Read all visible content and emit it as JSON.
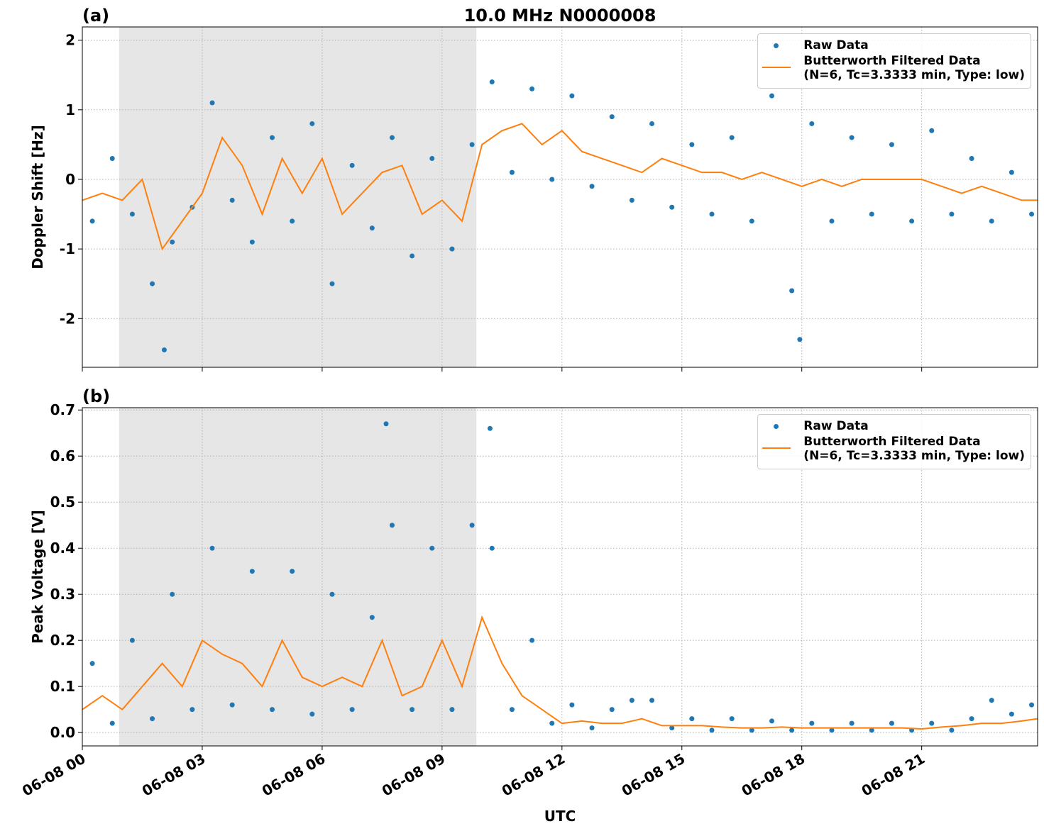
{
  "chart_data": [
    {
      "type": "line",
      "panel_label": "(a)",
      "title": "10.0 MHz N0000008",
      "ylabel": "Doppler Shift [Hz]",
      "xlim": [
        0,
        23.9
      ],
      "ylim": [
        -2.7,
        2.19
      ],
      "xticks": [
        0,
        3,
        6,
        9,
        12,
        15,
        18,
        21
      ],
      "yticks": [
        -2,
        -1,
        0,
        1,
        2
      ],
      "grid": true,
      "shade": [
        0.92,
        9.86
      ],
      "legend": "upper right",
      "series": [
        {
          "name": "Raw Data",
          "style": "scatter",
          "color": "#1f77b4",
          "x": [
            0.25,
            0.75,
            1.25,
            1.75,
            2.25,
            2.75,
            3.25,
            3.75,
            4.25,
            4.75,
            5.25,
            5.75,
            6.25,
            6.75,
            7.25,
            7.75,
            8.25,
            8.75,
            9.25,
            9.75,
            10.25,
            10.75,
            11.25,
            11.75,
            12.25,
            12.75,
            13.25,
            13.75,
            14.25,
            14.75,
            15.25,
            15.75,
            16.25,
            16.75,
            17.25,
            17.75,
            18.25,
            18.75,
            19.25,
            19.75,
            20.25,
            20.75,
            21.25,
            21.75,
            22.25,
            22.75,
            23.25,
            23.75,
            2.05,
            17.95
          ],
          "values": [
            -0.6,
            0.3,
            -0.5,
            -1.5,
            -0.9,
            -0.4,
            1.1,
            -0.3,
            -0.9,
            0.6,
            -0.6,
            0.8,
            -1.5,
            0.2,
            -0.7,
            0.6,
            -1.1,
            0.3,
            -1.0,
            0.5,
            1.4,
            0.1,
            1.3,
            0.0,
            1.2,
            -0.1,
            0.9,
            -0.3,
            0.8,
            -0.4,
            0.5,
            -0.5,
            0.6,
            -0.6,
            1.2,
            -1.6,
            0.8,
            -0.6,
            0.6,
            -0.5,
            0.5,
            -0.6,
            0.7,
            -0.5,
            0.3,
            -0.6,
            0.1,
            -0.5,
            -2.45,
            -2.3
          ]
        },
        {
          "name": "Butterworth Filtered Data\n(N=6, Tc=3.3333 min, Type: low)",
          "style": "line",
          "color": "#ff7f0e",
          "x": [
            0,
            0.5,
            1,
            1.5,
            2,
            2.5,
            3,
            3.5,
            4,
            4.5,
            5,
            5.5,
            6,
            6.5,
            7,
            7.5,
            8,
            8.5,
            9,
            9.5,
            10,
            10.5,
            11,
            11.5,
            12,
            12.5,
            13,
            13.5,
            14,
            14.5,
            15,
            15.5,
            16,
            16.5,
            17,
            17.5,
            18,
            18.5,
            19,
            19.5,
            20,
            20.5,
            21,
            21.5,
            22,
            22.5,
            23,
            23.5,
            23.9
          ],
          "values": [
            -0.3,
            -0.2,
            -0.3,
            0,
            -1.0,
            -0.6,
            -0.2,
            0.6,
            0.2,
            -0.5,
            0.3,
            -0.2,
            0.3,
            -0.5,
            -0.2,
            0.1,
            0.2,
            -0.5,
            -0.3,
            -0.6,
            0.5,
            0.7,
            0.8,
            0.5,
            0.7,
            0.4,
            0.3,
            0.2,
            0.1,
            0.3,
            0.2,
            0.1,
            0.1,
            0.0,
            0.1,
            0.0,
            -0.1,
            0.0,
            -0.1,
            0.0,
            0.0,
            0.0,
            0.0,
            -0.1,
            -0.2,
            -0.1,
            -0.2,
            -0.3,
            -0.3
          ]
        }
      ]
    },
    {
      "type": "line",
      "panel_label": "(b)",
      "ylabel": "Peak Voltage [V]",
      "xlabel": "UTC",
      "xlim": [
        0,
        23.9
      ],
      "ylim": [
        -0.029,
        0.705
      ],
      "xticks": [
        {
          "value": 0,
          "label": "06-08 00"
        },
        {
          "value": 3,
          "label": "06-08 03"
        },
        {
          "value": 6,
          "label": "06-08 06"
        },
        {
          "value": 9,
          "label": "06-08 09"
        },
        {
          "value": 12,
          "label": "06-08 12"
        },
        {
          "value": 15,
          "label": "06-08 15"
        },
        {
          "value": 18,
          "label": "06-08 18"
        },
        {
          "value": 21,
          "label": "06-08 21"
        }
      ],
      "yticks": [
        {
          "value": 0,
          "label": "0.0"
        },
        0.1,
        0.2,
        0.3,
        0.4,
        0.5,
        0.6,
        0.7
      ],
      "grid": true,
      "shade": [
        0.92,
        9.86
      ],
      "legend": "upper right",
      "series": [
        {
          "name": "Raw Data",
          "style": "scatter",
          "color": "#1f77b4",
          "x": [
            0.25,
            0.75,
            1.25,
            1.75,
            2.25,
            2.75,
            3.25,
            3.75,
            4.25,
            4.75,
            5.25,
            5.75,
            6.25,
            6.75,
            7.25,
            7.75,
            8.25,
            8.75,
            9.25,
            9.75,
            10.25,
            10.75,
            11.25,
            11.75,
            12.25,
            12.75,
            13.25,
            13.75,
            14.25,
            14.75,
            15.25,
            15.75,
            16.25,
            16.75,
            17.25,
            17.75,
            18.25,
            18.75,
            19.25,
            19.75,
            20.25,
            20.75,
            21.25,
            21.75,
            22.25,
            22.75,
            23.25,
            23.75,
            7.6,
            10.2
          ],
          "values": [
            0.15,
            0.02,
            0.2,
            0.03,
            0.3,
            0.05,
            0.4,
            0.06,
            0.35,
            0.05,
            0.35,
            0.04,
            0.3,
            0.05,
            0.25,
            0.45,
            0.05,
            0.4,
            0.05,
            0.45,
            0.4,
            0.05,
            0.2,
            0.02,
            0.06,
            0.01,
            0.05,
            0.07,
            0.07,
            0.01,
            0.03,
            0.005,
            0.03,
            0.005,
            0.025,
            0.005,
            0.02,
            0.005,
            0.02,
            0.005,
            0.02,
            0.005,
            0.02,
            0.005,
            0.03,
            0.07,
            0.04,
            0.06,
            0.67,
            0.66
          ]
        },
        {
          "name": "Butterworth Filtered Data\n(N=6, Tc=3.3333 min, Type: low)",
          "style": "line",
          "color": "#ff7f0e",
          "x": [
            0,
            0.5,
            1,
            1.5,
            2,
            2.5,
            3,
            3.5,
            4,
            4.5,
            5,
            5.5,
            6,
            6.5,
            7,
            7.5,
            8,
            8.5,
            9,
            9.5,
            10,
            10.5,
            11,
            11.5,
            12,
            12.5,
            13,
            13.5,
            14,
            14.5,
            15,
            15.5,
            16,
            16.5,
            17,
            17.5,
            18,
            18.5,
            19,
            19.5,
            20,
            20.5,
            21,
            21.5,
            22,
            22.5,
            23,
            23.5,
            23.9
          ],
          "values": [
            0.05,
            0.08,
            0.05,
            0.1,
            0.15,
            0.1,
            0.2,
            0.17,
            0.15,
            0.1,
            0.2,
            0.12,
            0.1,
            0.12,
            0.1,
            0.2,
            0.08,
            0.1,
            0.2,
            0.1,
            0.25,
            0.15,
            0.08,
            0.05,
            0.02,
            0.025,
            0.02,
            0.02,
            0.03,
            0.015,
            0.015,
            0.015,
            0.012,
            0.01,
            0.01,
            0.012,
            0.01,
            0.01,
            0.01,
            0.01,
            0.01,
            0.01,
            0.008,
            0.012,
            0.015,
            0.02,
            0.02,
            0.025,
            0.03
          ]
        }
      ]
    }
  ]
}
